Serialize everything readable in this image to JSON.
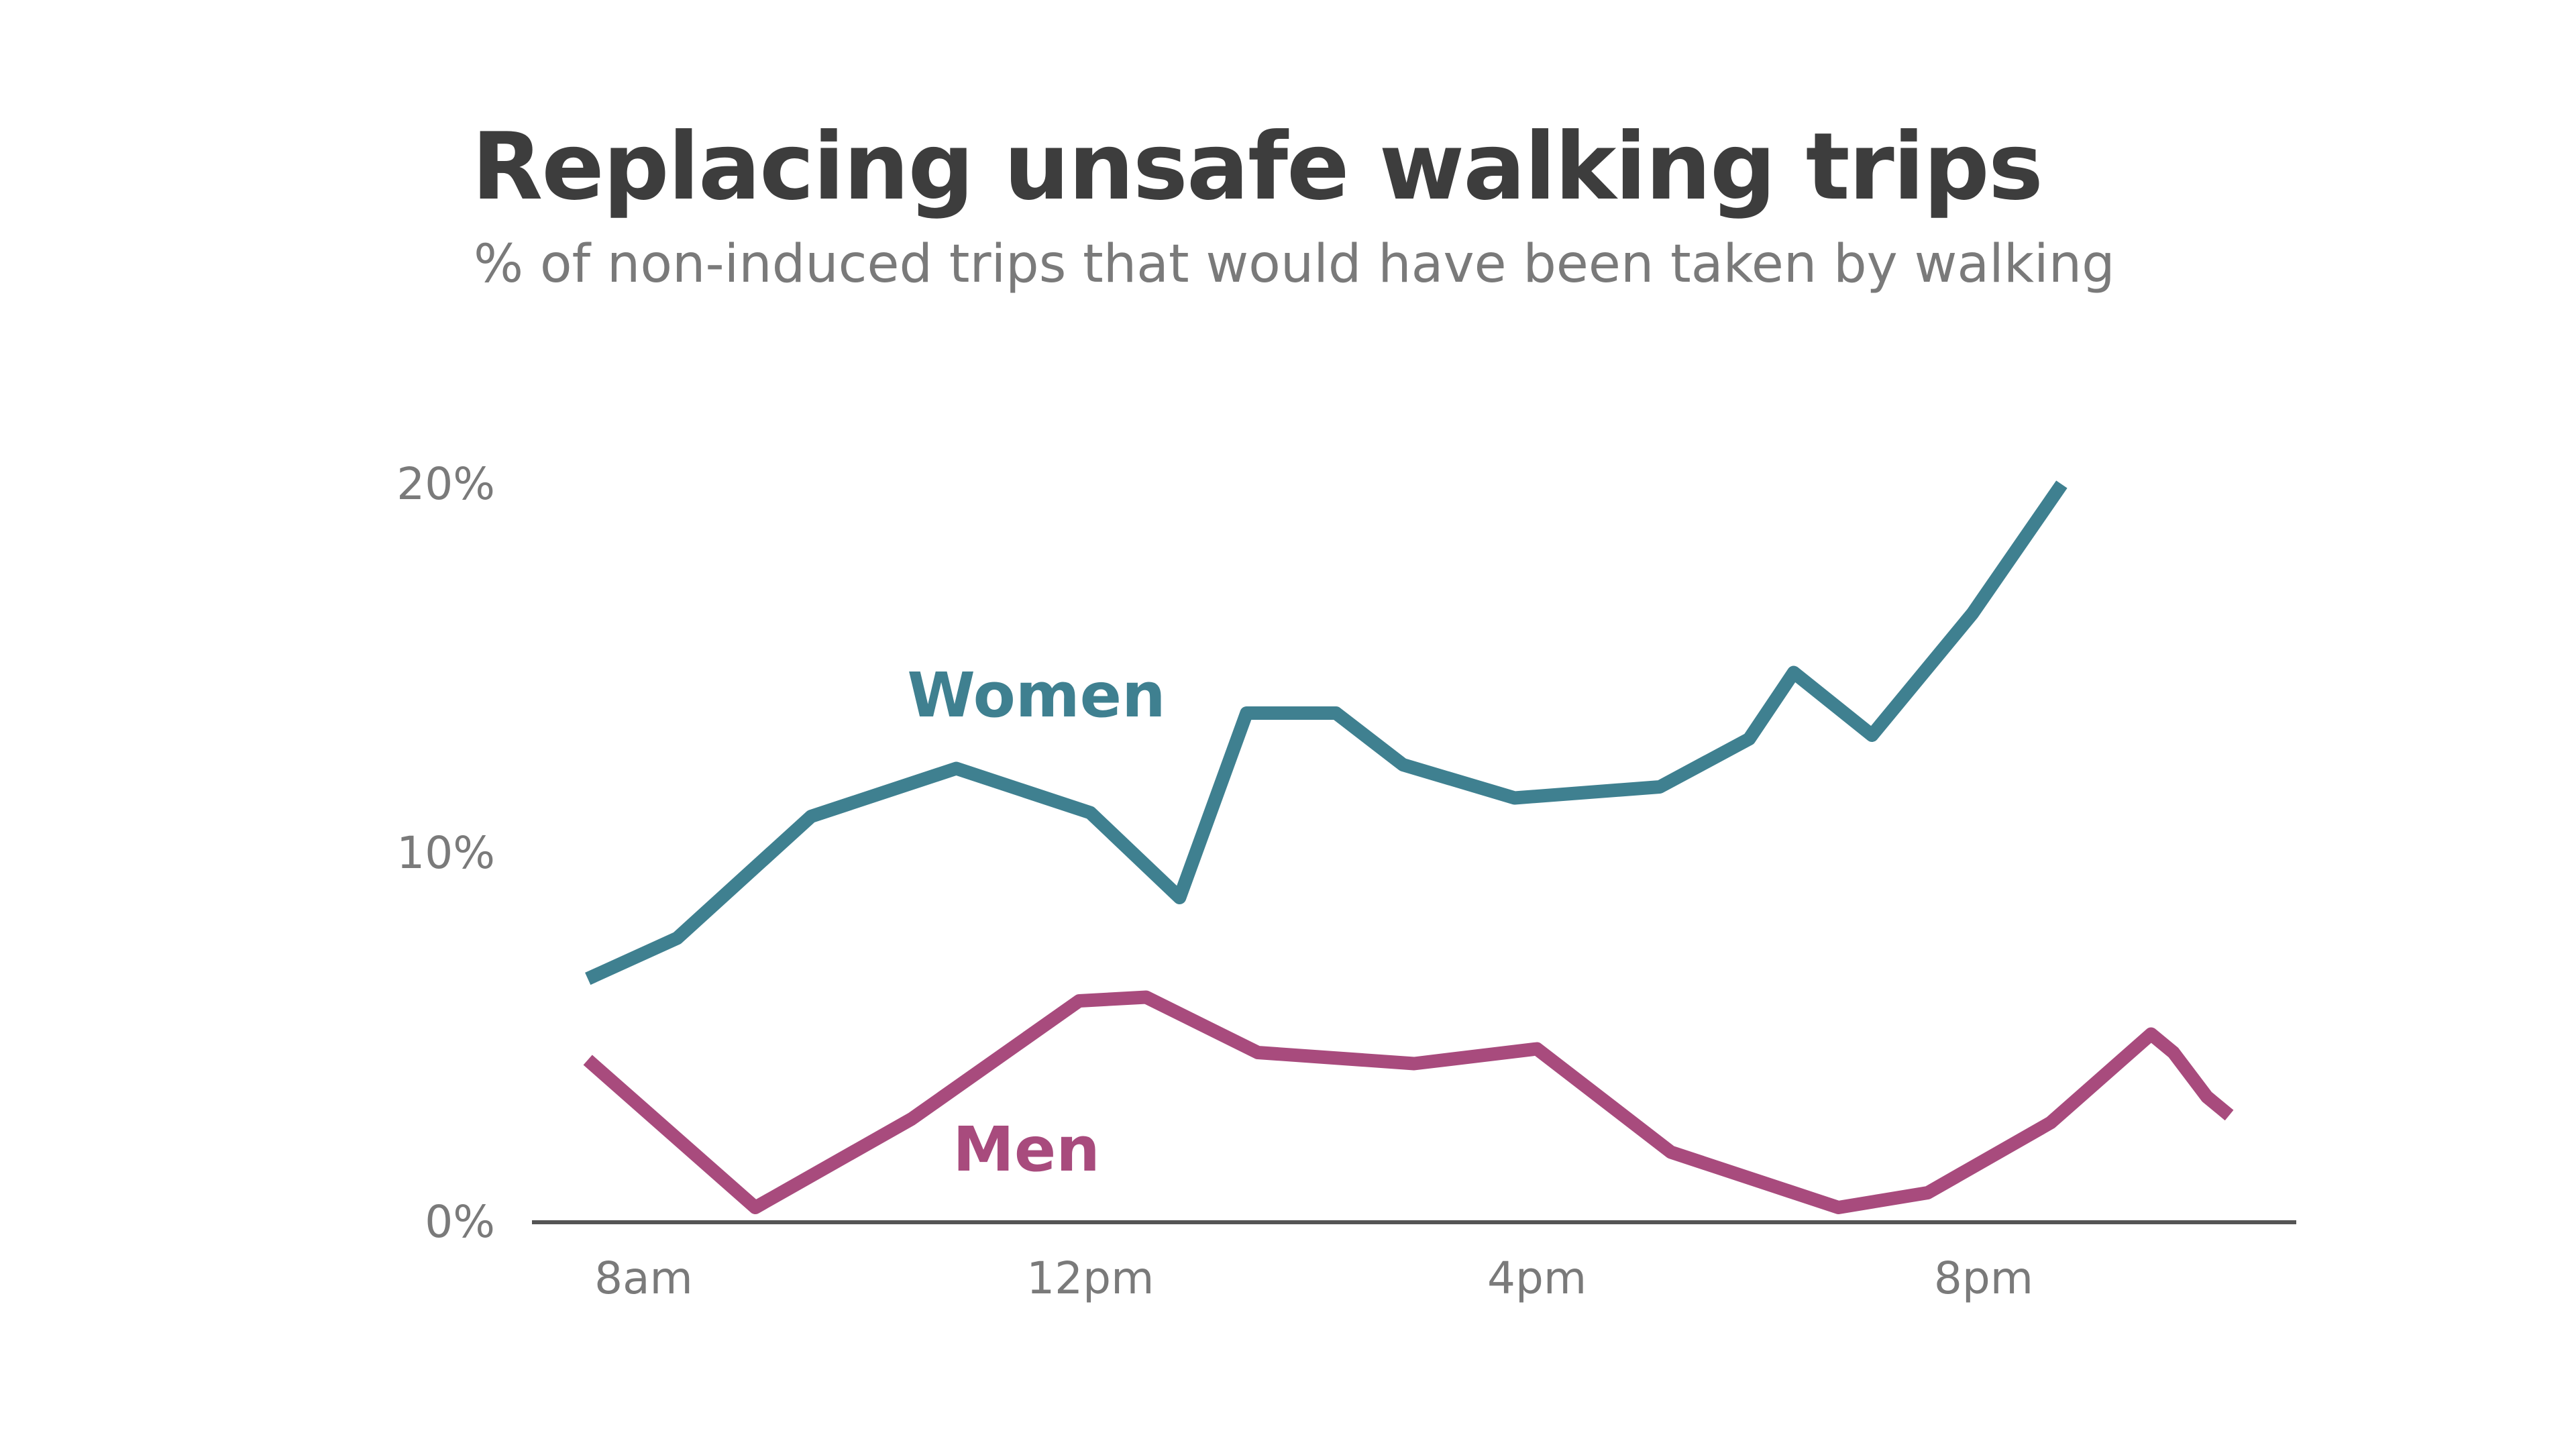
{
  "colors": {
    "title": "#3d3d3d",
    "subtitle": "#7a7a7a",
    "tick_text": "#7a7a7a",
    "axis": "#555555",
    "women": "#3f8090",
    "men": "#a84b7d"
  },
  "chart_data": {
    "type": "line",
    "title": "Replacing unsafe walking trips",
    "subtitle": "% of non-induced trips that would have been taken by walking",
    "xlabel": "",
    "ylabel": "",
    "x_unit": "hour of day",
    "xlim": [
      7.0,
      22.8
    ],
    "ylim": [
      0,
      20
    ],
    "x_ticks": [
      {
        "value": 8,
        "label": "8am"
      },
      {
        "value": 12,
        "label": "12pm"
      },
      {
        "value": 16,
        "label": "4pm"
      },
      {
        "value": 20,
        "label": "8pm"
      }
    ],
    "y_ticks": [
      {
        "value": 0,
        "label": "0%"
      },
      {
        "value": 10,
        "label": "10%"
      },
      {
        "value": 20,
        "label": "20%"
      }
    ],
    "grid": false,
    "legend": "none (direct labels on lines)",
    "series": [
      {
        "name": "Women",
        "x": [
          7.5,
          8.3,
          9.5,
          10.8,
          12.0,
          12.8,
          13.4,
          14.2,
          14.8,
          15.8,
          17.1,
          17.9,
          18.3,
          19.0,
          19.9,
          20.7
        ],
        "y": [
          6.6,
          7.7,
          11.0,
          12.3,
          11.1,
          8.8,
          13.8,
          13.8,
          12.4,
          11.5,
          11.8,
          13.1,
          14.9,
          13.2,
          16.5,
          20.0
        ]
      },
      {
        "name": "Men",
        "x": [
          7.5,
          9.0,
          10.4,
          11.9,
          12.5,
          13.5,
          14.9,
          16.0,
          17.2,
          18.7,
          19.5,
          20.6,
          21.5,
          21.7,
          22.0,
          22.2
        ],
        "y": [
          4.4,
          0.4,
          2.8,
          6.0,
          6.1,
          4.6,
          4.3,
          4.7,
          1.9,
          0.4,
          0.8,
          2.7,
          5.1,
          4.6,
          3.4,
          2.9
        ]
      }
    ],
    "annotations": [
      {
        "text": "Women",
        "series": "Women"
      },
      {
        "text": "Men",
        "series": "Men"
      }
    ]
  }
}
